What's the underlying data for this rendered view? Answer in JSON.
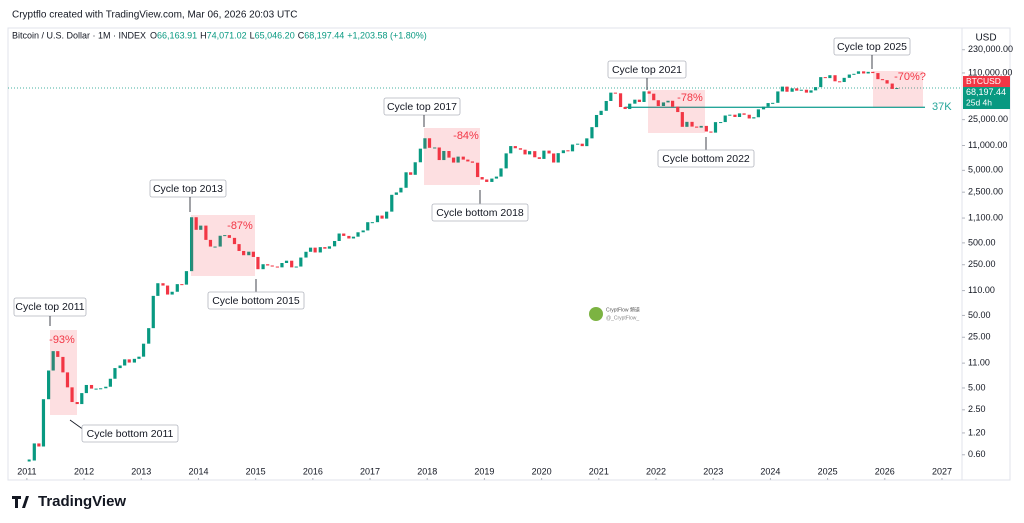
{
  "chart_data": {
    "type": "candlestick",
    "source": "Cryptflo created with TradingView.com, Mar 06, 2026 20:03 UTC",
    "symbol": "Bitcoin / U.S. Dollar · 1M · INDEX",
    "ohlc": [
      {
        "label": "O",
        "value": "66,163.91"
      },
      {
        "label": "H",
        "value": "74,071.02"
      },
      {
        "label": "L",
        "value": "65,046.20"
      },
      {
        "label": "C",
        "value": "68,197.44"
      }
    ],
    "change": "+1,203.58 (+1.80%)",
    "currency": "USD",
    "ticker": "BTCUSD",
    "last_price": {
      "value": 68197.44,
      "label": "68,197.44"
    },
    "countdown": "25d 4h",
    "level": {
      "value": 37000,
      "label": "37K"
    },
    "up_color": "#089981",
    "down_color": "#f23645",
    "log_scale": true,
    "xlim": [
      2010.67,
      2027.35
    ],
    "xticks": [
      2011,
      2012,
      2013,
      2014,
      2015,
      2016,
      2017,
      2018,
      2019,
      2020,
      2021,
      2022,
      2023,
      2024,
      2025,
      2026,
      2027
    ],
    "ylim": [
      0.37,
      367000
    ],
    "yticks": [
      {
        "value": 230000,
        "label": "230,000.00"
      },
      {
        "value": 110000,
        "label": "110,000.00"
      },
      {
        "value": 25000,
        "label": "25,000.00"
      },
      {
        "value": 11000,
        "label": "11,000.00"
      },
      {
        "value": 5000,
        "label": "5,000.00"
      },
      {
        "value": 2500,
        "label": "2,500.00"
      },
      {
        "value": 1100,
        "label": "1,100.00"
      },
      {
        "value": 500,
        "label": "500.00"
      },
      {
        "value": 250,
        "label": "250.00"
      },
      {
        "value": 110,
        "label": "110.00"
      },
      {
        "value": 50,
        "label": "50.00"
      },
      {
        "value": 25,
        "label": "25.00"
      },
      {
        "value": 11,
        "label": "11.00"
      },
      {
        "value": 5,
        "label": "5.00"
      },
      {
        "value": 2.5,
        "label": "2.50"
      },
      {
        "value": 1.2,
        "label": "1.20"
      },
      {
        "value": 0.6,
        "label": "0.60"
      }
    ],
    "x": [
      2011.04,
      2011.13,
      2011.21,
      2011.29,
      2011.38,
      2011.46,
      2011.54,
      2011.63,
      2011.71,
      2011.79,
      2011.88,
      2011.96,
      2012.04,
      2012.13,
      2012.21,
      2012.29,
      2012.38,
      2012.46,
      2012.54,
      2012.63,
      2012.71,
      2012.79,
      2012.88,
      2012.96,
      2013.04,
      2013.13,
      2013.21,
      2013.29,
      2013.38,
      2013.46,
      2013.54,
      2013.63,
      2013.71,
      2013.79,
      2013.88,
      2013.96,
      2014.04,
      2014.13,
      2014.21,
      2014.29,
      2014.38,
      2014.46,
      2014.54,
      2014.63,
      2014.71,
      2014.79,
      2014.88,
      2014.96,
      2015.04,
      2015.13,
      2015.21,
      2015.29,
      2015.38,
      2015.46,
      2015.54,
      2015.63,
      2015.71,
      2015.79,
      2015.88,
      2015.96,
      2016.04,
      2016.13,
      2016.21,
      2016.29,
      2016.38,
      2016.46,
      2016.54,
      2016.63,
      2016.71,
      2016.79,
      2016.88,
      2016.96,
      2017.04,
      2017.13,
      2017.21,
      2017.29,
      2017.38,
      2017.46,
      2017.54,
      2017.63,
      2017.71,
      2017.79,
      2017.88,
      2017.96,
      2018.04,
      2018.13,
      2018.21,
      2018.29,
      2018.38,
      2018.46,
      2018.54,
      2018.63,
      2018.71,
      2018.79,
      2018.88,
      2018.96,
      2019.04,
      2019.13,
      2019.21,
      2019.29,
      2019.38,
      2019.46,
      2019.54,
      2019.63,
      2019.71,
      2019.79,
      2019.88,
      2019.96,
      2020.04,
      2020.13,
      2020.21,
      2020.29,
      2020.38,
      2020.46,
      2020.54,
      2020.63,
      2020.71,
      2020.79,
      2020.88,
      2020.96,
      2021.04,
      2021.13,
      2021.21,
      2021.29,
      2021.38,
      2021.46,
      2021.54,
      2021.63,
      2021.71,
      2021.79,
      2021.88,
      2021.96,
      2022.04,
      2022.13,
      2022.21,
      2022.29,
      2022.38,
      2022.46,
      2022.54,
      2022.63,
      2022.71,
      2022.79,
      2022.88,
      2022.96,
      2023.04,
      2023.13,
      2023.21,
      2023.29,
      2023.38,
      2023.46,
      2023.54,
      2023.63,
      2023.71,
      2023.79,
      2023.88,
      2023.96,
      2024.04,
      2024.13,
      2024.21,
      2024.29,
      2024.38,
      2024.46,
      2024.54,
      2024.63,
      2024.71,
      2024.79,
      2024.88,
      2024.96,
      2025.04,
      2025.13,
      2025.21,
      2025.29,
      2025.38,
      2025.46,
      2025.54,
      2025.63,
      2025.71,
      2025.79,
      2025.88,
      2025.96,
      2026.04,
      2026.13,
      2026.21
    ],
    "values": [
      0.5,
      0.86,
      0.78,
      3.5,
      8.7,
      16.1,
      13.4,
      8.2,
      5.1,
      3.2,
      3.0,
      4.25,
      5.5,
      4.9,
      4.9,
      4.95,
      5.2,
      6.7,
      9.4,
      10.2,
      12.4,
      11.2,
      12.6,
      13.5,
      20.4,
      33.4,
      93,
      139,
      129,
      97,
      106,
      135,
      133,
      204,
      1129,
      757,
      865,
      550,
      445,
      445,
      627,
      640,
      586,
      481,
      387,
      338,
      378,
      320,
      217,
      254,
      244,
      236,
      230,
      264,
      284,
      230,
      236,
      314,
      377,
      430,
      369,
      437,
      416,
      448,
      531,
      673,
      624,
      575,
      609,
      700,
      742,
      964,
      965,
      1190,
      1080,
      1348,
      2300,
      2480,
      2875,
      4700,
      4340,
      6460,
      9950,
      13850,
      10220,
      10330,
      6930,
      9240,
      7490,
      6400,
      7730,
      7030,
      6630,
      6370,
      4040,
      3740,
      3460,
      3850,
      4100,
      5320,
      8570,
      10800,
      10080,
      9630,
      8290,
      9200,
      7570,
      7190,
      9350,
      8540,
      6410,
      8630,
      9450,
      9140,
      11350,
      11650,
      10780,
      13800,
      19700,
      28990,
      33100,
      45200,
      58900,
      57700,
      37300,
      35000,
      41500,
      47100,
      43800,
      61300,
      57000,
      46300,
      38500,
      43200,
      45500,
      37700,
      31800,
      19900,
      23300,
      20050,
      19400,
      20500,
      17150,
      16550,
      23100,
      23150,
      28500,
      29250,
      27200,
      30500,
      29200,
      25950,
      26970,
      34650,
      37700,
      42300,
      42600,
      61200,
      71300,
      60600,
      67500,
      62700,
      64600,
      58900,
      63300,
      70200,
      96400,
      93400,
      102400,
      84400,
      82500,
      94200,
      104600,
      107100,
      115800,
      108200,
      114000,
      109600,
      90400,
      87500,
      78600,
      66300,
      68197.44
    ],
    "annotations": [
      "Cycle top 2011",
      "-93%",
      "Cycle bottom 2011",
      "Cycle top 2013",
      "-87%",
      "Cycle bottom 2015",
      "Cycle top 2017",
      "-84%",
      "Cycle bottom 2018",
      "Cycle top 2021",
      "-78%",
      "Cycle bottom 2022",
      "Cycle top 2025",
      "-70%?"
    ],
    "watermark": [
      "CryptFlow 頻道",
      "@_CryptFlow_"
    ],
    "brand": "TradingView"
  }
}
